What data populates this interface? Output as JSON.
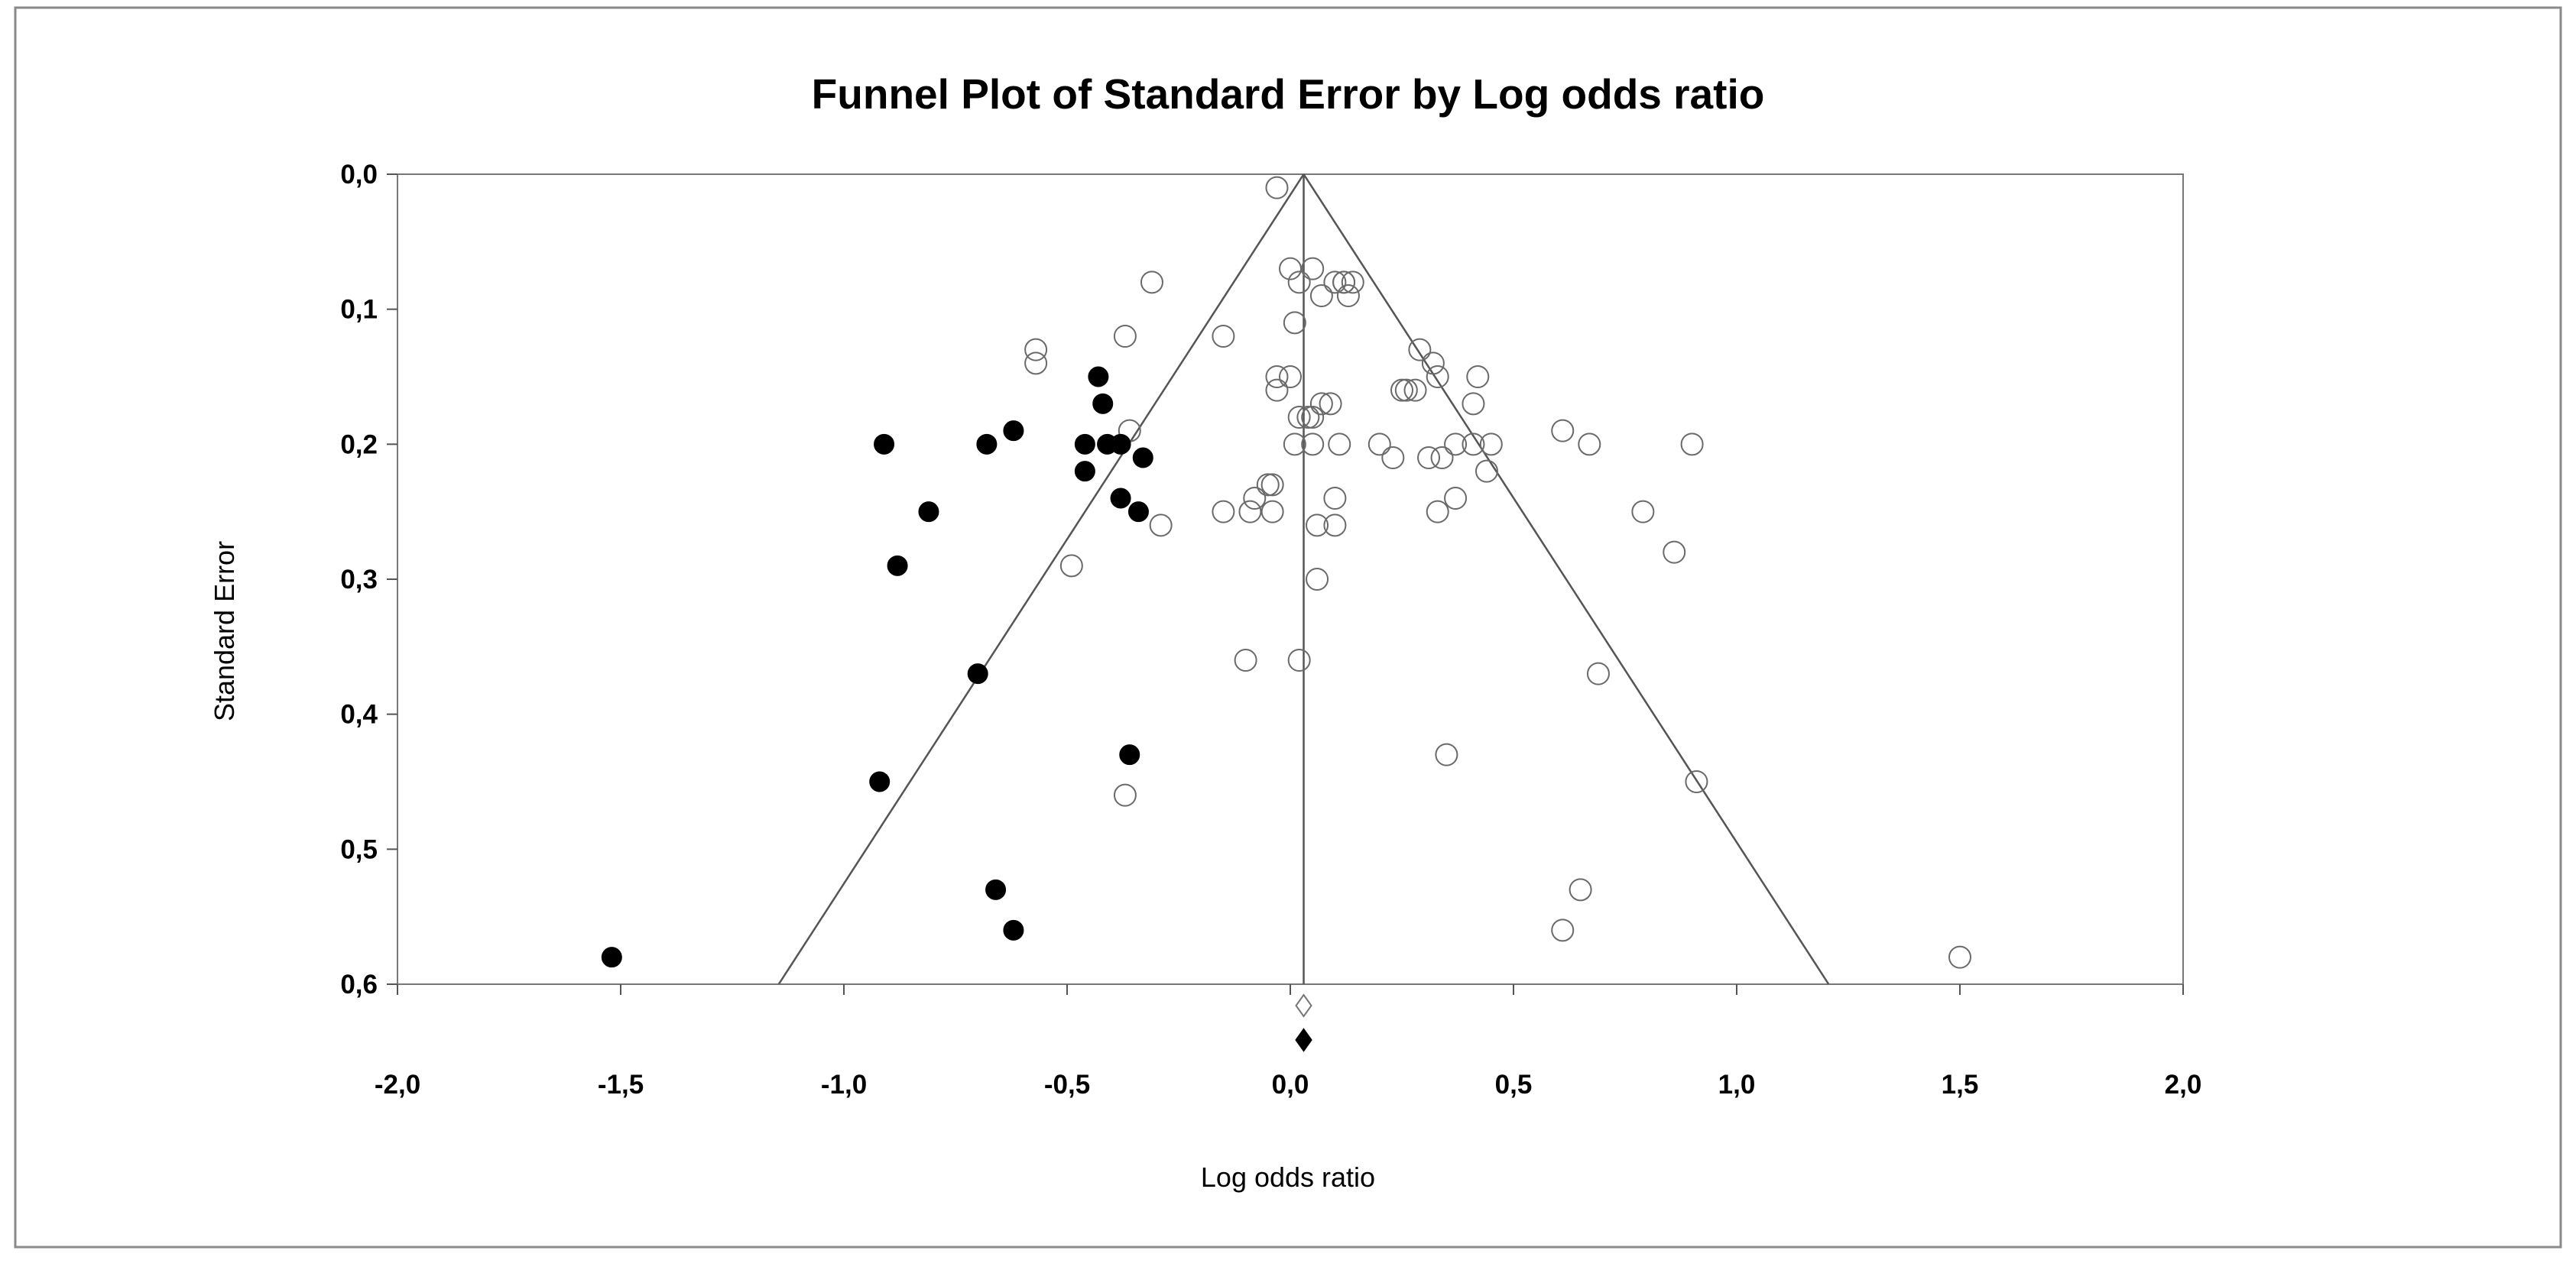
{
  "chart_data": {
    "type": "scatter",
    "title": "Funnel Plot of Standard Error by Log odds ratio",
    "xlabel": "Log odds ratio",
    "ylabel": "Standard Error",
    "xlim": [
      -2.0,
      2.0
    ],
    "ylim": [
      0.0,
      0.6
    ],
    "y_inverted": true,
    "xticks": [
      "-2,0",
      "-1,5",
      "-1,0",
      "-0,5",
      "0,0",
      "0,5",
      "1,0",
      "1,5",
      "2,0"
    ],
    "xtick_values": [
      -2.0,
      -1.5,
      -1.0,
      -0.5,
      0.0,
      0.5,
      1.0,
      1.5,
      2.0
    ],
    "yticks": [
      "0,0",
      "0,1",
      "0,2",
      "0,3",
      "0,4",
      "0,5",
      "0,6"
    ],
    "ytick_values": [
      0.0,
      0.1,
      0.2,
      0.3,
      0.4,
      0.5,
      0.6
    ],
    "grid": false,
    "legend": "none",
    "funnel": {
      "center": 0.03,
      "apex_se": 0.0,
      "line_color": "#555555",
      "limit_multiplier": 1.96
    },
    "summary_estimates": {
      "observed": {
        "x": 0.03,
        "marker": "open-diamond"
      },
      "imputed": {
        "x": 0.03,
        "marker": "filled-diamond"
      }
    },
    "series": [
      {
        "kind": "observed",
        "marker": "open-circle",
        "color": "#000000",
        "points": [
          [
            -0.03,
            0.01
          ],
          [
            0.0,
            0.07
          ],
          [
            0.02,
            0.08
          ],
          [
            0.05,
            0.07
          ],
          [
            0.1,
            0.08
          ],
          [
            0.12,
            0.08
          ],
          [
            0.14,
            0.08
          ],
          [
            0.12,
            0.08
          ],
          [
            0.07,
            0.09
          ],
          [
            0.13,
            0.09
          ],
          [
            -0.31,
            0.08
          ],
          [
            0.01,
            0.11
          ],
          [
            -0.57,
            0.13
          ],
          [
            -0.57,
            0.14
          ],
          [
            -0.37,
            0.12
          ],
          [
            -0.15,
            0.12
          ],
          [
            0.29,
            0.13
          ],
          [
            -0.03,
            0.15
          ],
          [
            -0.03,
            0.16
          ],
          [
            0.0,
            0.15
          ],
          [
            0.32,
            0.14
          ],
          [
            0.33,
            0.15
          ],
          [
            0.42,
            0.15
          ],
          [
            0.25,
            0.16
          ],
          [
            0.26,
            0.16
          ],
          [
            0.28,
            0.16
          ],
          [
            0.41,
            0.17
          ],
          [
            0.09,
            0.17
          ],
          [
            0.07,
            0.17
          ],
          [
            0.02,
            0.18
          ],
          [
            0.04,
            0.18
          ],
          [
            0.05,
            0.18
          ],
          [
            0.01,
            0.2
          ],
          [
            0.05,
            0.2
          ],
          [
            0.11,
            0.2
          ],
          [
            0.2,
            0.2
          ],
          [
            0.31,
            0.21
          ],
          [
            0.34,
            0.21
          ],
          [
            0.37,
            0.2
          ],
          [
            0.41,
            0.2
          ],
          [
            0.45,
            0.2
          ],
          [
            0.61,
            0.19
          ],
          [
            0.67,
            0.2
          ],
          [
            0.9,
            0.2
          ],
          [
            0.23,
            0.21
          ],
          [
            0.44,
            0.22
          ],
          [
            -0.36,
            0.19
          ],
          [
            -0.04,
            0.23
          ],
          [
            -0.05,
            0.23
          ],
          [
            -0.08,
            0.24
          ],
          [
            -0.15,
            0.25
          ],
          [
            -0.09,
            0.25
          ],
          [
            -0.04,
            0.25
          ],
          [
            0.1,
            0.24
          ],
          [
            0.37,
            0.24
          ],
          [
            0.33,
            0.25
          ],
          [
            0.79,
            0.25
          ],
          [
            -0.29,
            0.26
          ],
          [
            0.06,
            0.26
          ],
          [
            0.1,
            0.26
          ],
          [
            -0.49,
            0.29
          ],
          [
            0.06,
            0.3
          ],
          [
            0.86,
            0.28
          ],
          [
            -0.1,
            0.36
          ],
          [
            0.02,
            0.36
          ],
          [
            0.69,
            0.37
          ],
          [
            0.35,
            0.43
          ],
          [
            -0.37,
            0.46
          ],
          [
            0.91,
            0.45
          ],
          [
            0.65,
            0.53
          ],
          [
            0.61,
            0.56
          ],
          [
            1.5,
            0.58
          ]
        ]
      },
      {
        "kind": "imputed",
        "marker": "filled-circle",
        "color": "#000000",
        "points": [
          [
            -0.43,
            0.15
          ],
          [
            -0.42,
            0.17
          ],
          [
            -0.62,
            0.19
          ],
          [
            -0.91,
            0.2
          ],
          [
            -0.68,
            0.2
          ],
          [
            -0.46,
            0.2
          ],
          [
            -0.41,
            0.2
          ],
          [
            -0.38,
            0.2
          ],
          [
            -0.33,
            0.21
          ],
          [
            -0.46,
            0.22
          ],
          [
            -0.38,
            0.24
          ],
          [
            -0.34,
            0.25
          ],
          [
            -0.81,
            0.25
          ],
          [
            -0.88,
            0.29
          ],
          [
            -0.7,
            0.37
          ],
          [
            -0.36,
            0.43
          ],
          [
            -0.92,
            0.45
          ],
          [
            -0.66,
            0.53
          ],
          [
            -0.62,
            0.56
          ],
          [
            -1.52,
            0.58
          ]
        ]
      }
    ]
  }
}
